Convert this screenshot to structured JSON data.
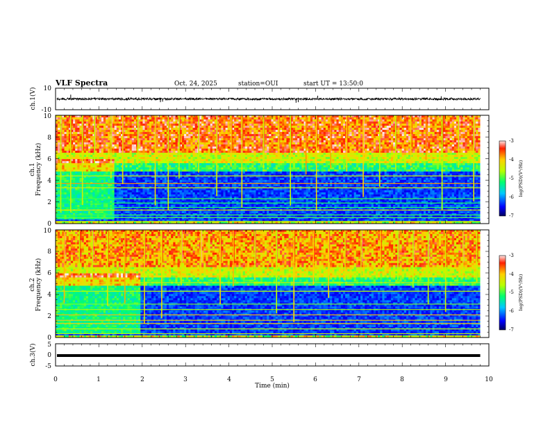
{
  "header": {
    "title": "VLF Spectra",
    "date": "Oct. 24, 2025",
    "station": "station=OUI",
    "start": "start UT = 13:50:0"
  },
  "chart_data": [
    {
      "type": "line",
      "id": "ch1-waveform",
      "ylabel": "ch.1(V)",
      "ylim": [
        -10,
        10
      ],
      "yticks": [
        "10",
        "-10"
      ],
      "xlim": [
        0,
        10
      ],
      "data_end_min": 9.8,
      "baseline": 0,
      "noise_amplitude": 1,
      "spikes": [
        {
          "t": 0.35,
          "v": 4
        },
        {
          "t": 2.42,
          "v": -3
        },
        {
          "t": 2.47,
          "v": -2.5
        },
        {
          "t": 5.55,
          "v": -3.5
        },
        {
          "t": 5.6,
          "v": -3
        },
        {
          "t": 6.05,
          "v": 3
        },
        {
          "t": 8.9,
          "v": 2.5
        }
      ]
    },
    {
      "type": "heatmap",
      "id": "ch1-spectrogram",
      "ylabel": "Frequency (kHz)",
      "channel_label": "ch.1",
      "ylim": [
        0,
        10
      ],
      "yticks": [
        "0",
        "2",
        "4",
        "6",
        "8",
        "10"
      ],
      "xlim": [
        0,
        10
      ],
      "data_end_min": 9.8,
      "step_change_min": 1.35,
      "colorbar": {
        "label": "log(PSD)(V²/Hz)",
        "range": [
          -7,
          -3
        ],
        "ticks": [
          "-3",
          "-4",
          "-5",
          "-6",
          "-7"
        ]
      },
      "persistent_lines_khz": [
        0.2,
        0.55,
        0.8,
        1.25,
        1.5,
        1.9,
        2.3,
        3.3,
        3.7,
        4.4
      ],
      "events_min": [
        0.12,
        0.35,
        0.62,
        0.9,
        1.28,
        1.55,
        1.9,
        2.3,
        2.6,
        2.85,
        3.3,
        3.72,
        4.05,
        4.3,
        4.8,
        5.15,
        5.42,
        5.78,
        6.02,
        6.35,
        6.72,
        7.1,
        7.48,
        7.85,
        8.2,
        8.55,
        8.92,
        9.3,
        9.65
      ]
    },
    {
      "type": "heatmap",
      "id": "ch2-spectrogram",
      "ylabel": "Frequency (kHz)",
      "channel_label": "ch.2",
      "ylim": [
        0,
        10
      ],
      "yticks": [
        "0",
        "2",
        "4",
        "6",
        "8",
        "10"
      ],
      "xlim": [
        0,
        10
      ],
      "data_end_min": 9.8,
      "step_change_min": 1.95,
      "colorbar": {
        "label": "log(PSD)(V²/Hz)",
        "range": [
          -7,
          -3
        ],
        "ticks": [
          "-3",
          "-4",
          "-5",
          "-6",
          "-7"
        ]
      },
      "persistent_lines_khz": [
        0.35,
        0.8,
        1.3,
        1.6,
        2.1,
        2.6,
        3.1,
        4.3,
        5.1
      ],
      "events_min": [
        0.2,
        0.55,
        0.85,
        1.2,
        1.6,
        2.05,
        2.45,
        2.9,
        3.35,
        3.8,
        4.1,
        4.6,
        5.1,
        5.5,
        5.95,
        6.3,
        6.68,
        7.05,
        7.5,
        7.9,
        8.25,
        8.6,
        9.0,
        9.4,
        9.72
      ]
    },
    {
      "type": "line",
      "id": "ch3-waveform",
      "ylabel": "ch.3(V)",
      "ylim": [
        -5,
        5
      ],
      "yticks": [
        "5",
        "0",
        "-5"
      ],
      "xlim": [
        0,
        10
      ],
      "data_end_min": 9.8,
      "baseline": -0.3,
      "xlabel": "Time (min)",
      "xticks": [
        "0",
        "1",
        "2",
        "3",
        "4",
        "5",
        "6",
        "7",
        "8",
        "9",
        "10"
      ]
    }
  ]
}
